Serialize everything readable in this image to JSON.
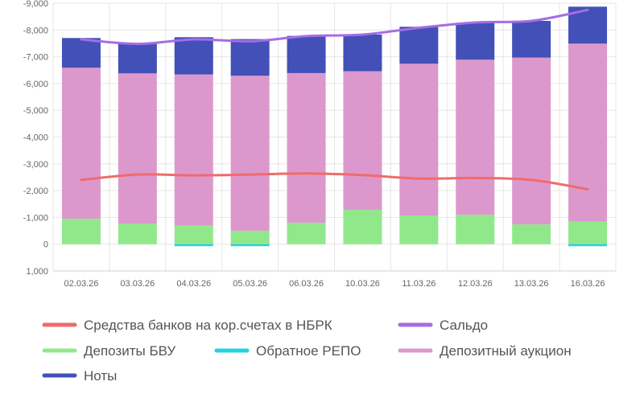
{
  "chart_data": {
    "type": "bar",
    "stacked": true,
    "inverted_y_axis": true,
    "categories": [
      "02.03.26",
      "03.03.26",
      "04.03.26",
      "05.03.26",
      "06.03.26",
      "10.03.26",
      "11.03.26",
      "12.03.26",
      "13.03.26",
      "16.03.26"
    ],
    "y_ticks": [
      "-9,000",
      "-8,000",
      "-7,000",
      "-6,000",
      "-5,000",
      "-4,000",
      "-3,000",
      "-2,000",
      "-1,000",
      "0",
      "1,000"
    ],
    "ylim": [
      -9000,
      1000
    ],
    "grid": true,
    "legend_position": "bottom",
    "bar_series": [
      {
        "name": "Депозиты БВУ",
        "color": "#90e88a",
        "values": [
          -950,
          -770,
          -690,
          -500,
          -800,
          -1280,
          -1070,
          -1100,
          -740,
          -840
        ]
      },
      {
        "name": "Депозитный аукцион",
        "color": "#dc98cc",
        "values": [
          -5640,
          -5610,
          -5650,
          -5790,
          -5590,
          -5180,
          -5670,
          -5790,
          -6230,
          -6650
        ]
      },
      {
        "name": "Ноты",
        "color": "#4250b8",
        "values": [
          -1110,
          -1130,
          -1390,
          -1370,
          -1390,
          -1370,
          -1380,
          -1380,
          -1370,
          -1380
        ]
      },
      {
        "name": "Обратное РЕПО",
        "color": "#22d3dc",
        "values": [
          0,
          0,
          70,
          70,
          0,
          0,
          0,
          0,
          0,
          70
        ]
      }
    ],
    "line_series": [
      {
        "name": "Средства банков на кор.счетах в НБРК",
        "color": "#ef6b6b",
        "values": [
          -2400,
          -2600,
          -2570,
          -2600,
          -2640,
          -2580,
          -2450,
          -2470,
          -2400,
          -2050
        ]
      },
      {
        "name": "Сальдо",
        "color": "#a56de4",
        "values": [
          -7650,
          -7480,
          -7650,
          -7580,
          -7770,
          -7830,
          -8080,
          -8280,
          -8340,
          -8750
        ]
      }
    ]
  },
  "legend": {
    "red": "Средства банков на кор.счетах в НБРК",
    "purple": "Сальдо",
    "green": "Депозиты БВУ",
    "cyan": "Обратное РЕПО",
    "pink": "Депозитный аукцион",
    "navy": "Ноты"
  }
}
